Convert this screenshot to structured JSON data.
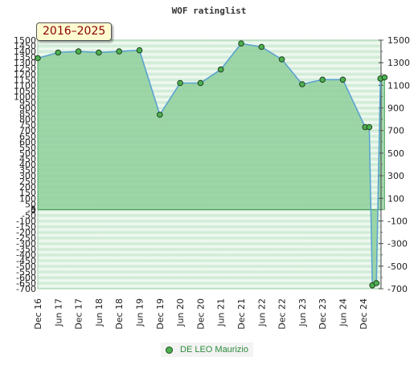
{
  "chart_data": {
    "type": "area",
    "title": "WOF ratinglist",
    "period_label": "2016–2025",
    "y_left": {
      "min": -700,
      "max": 1500,
      "ticks": [
        1500,
        1450,
        1400,
        1350,
        1300,
        1250,
        1200,
        1150,
        1100,
        1050,
        1000,
        950,
        900,
        850,
        800,
        750,
        700,
        650,
        600,
        550,
        500,
        450,
        400,
        350,
        300,
        250,
        200,
        150,
        100,
        50,
        5,
        0,
        -5,
        -50,
        -100,
        -150,
        -200,
        -250,
        -300,
        -350,
        -400,
        -450,
        -500,
        -550,
        -600,
        -650,
        -700
      ],
      "labels": [
        "1500",
        "1450",
        "1400",
        "1350",
        "1300",
        "1250",
        "1200",
        "1150",
        "1100",
        "1050",
        "1000",
        "950",
        "900",
        "850",
        "800",
        "750",
        "700",
        "650",
        "600",
        "550",
        "500",
        "450",
        "400",
        "350",
        "300",
        "250",
        "200",
        "150",
        "100",
        "50",
        "5",
        "0",
        "-5",
        "-50",
        "-100",
        "-150",
        "-200",
        "-250",
        "-300",
        "-350",
        "-400",
        "-450",
        "-500",
        "-550",
        "-600",
        "-650",
        "-700"
      ]
    },
    "y_right": {
      "ticks": [
        1500,
        1300,
        1100,
        900,
        700,
        500,
        300,
        100,
        -100,
        -300,
        -500,
        -700
      ],
      "labels": [
        "1500",
        "1300",
        "1100",
        "900",
        "700",
        "500",
        "300",
        "100",
        "-100",
        "-300",
        "-500",
        "-700"
      ]
    },
    "x_labels": [
      "Dec 16",
      "Jun 17",
      "Dec 17",
      "Jun 18",
      "Dec 18",
      "Jun 19",
      "Dec 19",
      "Jun 20",
      "Dec 20",
      "Jun 21",
      "Dec 21",
      "Jun 22",
      "Dec 22",
      "Jun 23",
      "Dec 23",
      "Jun 24",
      "Dec 24"
    ],
    "series": [
      {
        "name": "DE LEO Maurizio",
        "color": "#5ba3d0",
        "marker_color": "#4caf50",
        "fill_color": "#8fcf9b",
        "points": [
          {
            "x": 0,
            "y": 1340
          },
          {
            "x": 1,
            "y": 1390
          },
          {
            "x": 2,
            "y": 1400
          },
          {
            "x": 3,
            "y": 1390
          },
          {
            "x": 4,
            "y": 1400
          },
          {
            "x": 5,
            "y": 1410
          },
          {
            "x": 6,
            "y": 840
          },
          {
            "x": 7,
            "y": 1120
          },
          {
            "x": 8,
            "y": 1120
          },
          {
            "x": 9,
            "y": 1240
          },
          {
            "x": 10,
            "y": 1470
          },
          {
            "x": 11,
            "y": 1440
          },
          {
            "x": 12,
            "y": 1330
          },
          {
            "x": 13,
            "y": 1110
          },
          {
            "x": 14,
            "y": 1150
          },
          {
            "x": 15,
            "y": 1150
          },
          {
            "x": 16.1,
            "y": 730
          },
          {
            "x": 16.3,
            "y": 730
          },
          {
            "x": 16.45,
            "y": -670
          },
          {
            "x": 16.65,
            "y": -650
          },
          {
            "x": 16.85,
            "y": 1160
          },
          {
            "x": 17.05,
            "y": 1170
          }
        ]
      }
    ],
    "legend": {
      "position": "bottom-center",
      "label": "DE LEO Maurizio"
    },
    "grid": true
  }
}
